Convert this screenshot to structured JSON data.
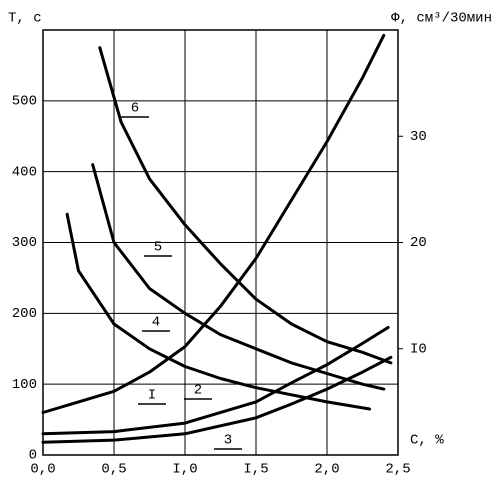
{
  "chart_data": {
    "type": "line",
    "ylabel": "T, c",
    "y2label": "Φ, см³/30мин",
    "xlabel": "C, %",
    "xlim": [
      0,
      2.5
    ],
    "xticks": [
      {
        "value": 0,
        "label": "0,0"
      },
      {
        "value": 0.5,
        "label": "0,5"
      },
      {
        "value": 1.0,
        "label": "I,0"
      },
      {
        "value": 1.5,
        "label": "I,5"
      },
      {
        "value": 2.0,
        "label": "2,0"
      },
      {
        "value": 2.5,
        "label": "2,5"
      }
    ],
    "ylim": [
      0,
      600
    ],
    "yticks": [
      0,
      100,
      200,
      300,
      400,
      500
    ],
    "y2lim": [
      0,
      40
    ],
    "y2ticks": [
      {
        "value": 10,
        "label": "I0"
      },
      20,
      30
    ],
    "grid": true,
    "color": "#000000",
    "series": [
      {
        "name": "I",
        "axis": "y2",
        "x": [
          0,
          0.25,
          0.5,
          0.75,
          1.0,
          1.25,
          1.5,
          1.75,
          2.0,
          2.25,
          2.4
        ],
        "values": [
          4,
          5,
          6,
          7.8,
          10.2,
          14,
          18.5,
          24,
          29.5,
          35.5,
          39.5
        ]
      },
      {
        "name": "2",
        "axis": "y2",
        "x": [
          0,
          0.5,
          1.0,
          1.5,
          1.75,
          2.0,
          2.25,
          2.43
        ],
        "values": [
          2,
          2.2,
          3,
          5,
          6.8,
          8.5,
          10.5,
          12
        ]
      },
      {
        "name": "3",
        "axis": "y2",
        "x": [
          0,
          0.5,
          1.0,
          1.5,
          1.75,
          2.0,
          2.25,
          2.45
        ],
        "values": [
          1.2,
          1.4,
          2,
          3.5,
          4.8,
          6.2,
          7.8,
          9.2
        ]
      },
      {
        "name": "4",
        "x": [
          0.17,
          0.25,
          0.5,
          0.75,
          1.0,
          1.25,
          1.5,
          1.75,
          2.0,
          2.3
        ],
        "values": [
          340,
          260,
          185,
          150,
          125,
          108,
          95,
          85,
          75,
          65
        ]
      },
      {
        "name": "5",
        "x": [
          0.35,
          0.5,
          0.75,
          1.0,
          1.25,
          1.5,
          1.75,
          2.0,
          2.25,
          2.4
        ],
        "values": [
          410,
          300,
          235,
          200,
          170,
          150,
          130,
          115,
          100,
          93
        ]
      },
      {
        "name": "6",
        "x": [
          0.4,
          0.55,
          0.75,
          1.0,
          1.25,
          1.5,
          1.75,
          2.0,
          2.25,
          2.45
        ],
        "values": [
          575,
          470,
          390,
          325,
          270,
          220,
          185,
          160,
          145,
          130
        ]
      }
    ]
  }
}
